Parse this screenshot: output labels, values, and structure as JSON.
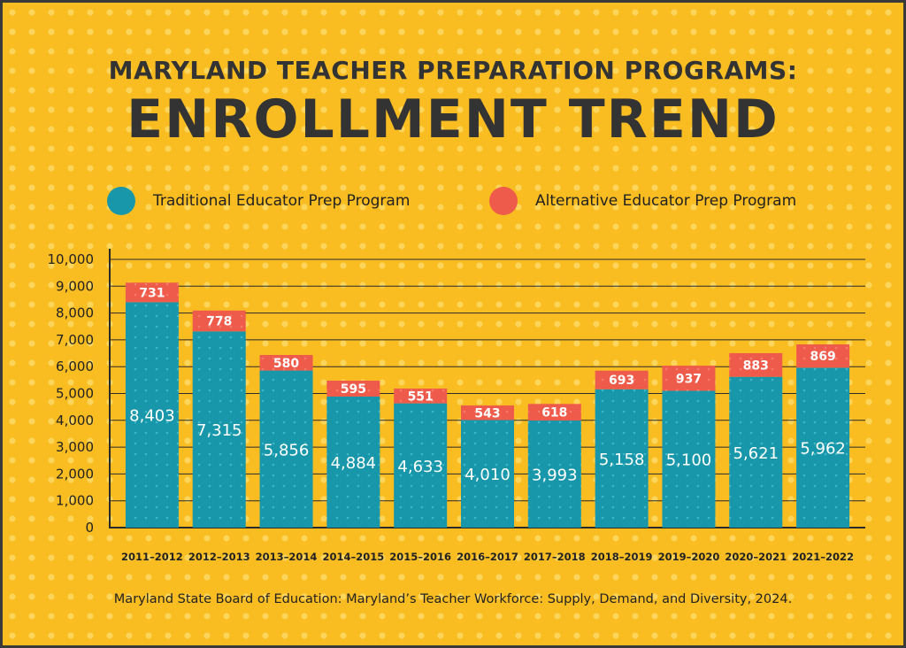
{
  "title": {
    "line1": "MARYLAND TEACHER PREPARATION PROGRAMS:",
    "line2": "ENROLLMENT TREND"
  },
  "legend": {
    "traditional": "Traditional Educator Prep Program",
    "alternative": "Alternative Educator Prep Program"
  },
  "colors": {
    "background": "#f9bd22",
    "traditional": "#1897aa",
    "alternative": "#ef5b4b",
    "text": "#333333"
  },
  "source": "Maryland State Board of Education: Maryland’s Teacher Workforce: Supply, Demand, and Diversity, 2024.",
  "chart_data": {
    "type": "bar",
    "stacked": true,
    "categories": [
      "2011–2012",
      "2012–2013",
      "2013–2014",
      "2014–2015",
      "2015–2016",
      "2016–2017",
      "2017–2018",
      "2018–2019",
      "2019–2020",
      "2020–2021",
      "2021–2022"
    ],
    "series": [
      {
        "name": "Traditional Educator Prep Program",
        "values": [
          8403,
          7315,
          5856,
          4884,
          4633,
          4010,
          3993,
          5158,
          5100,
          5621,
          5962
        ]
      },
      {
        "name": "Alternative Educator Prep Program",
        "values": [
          731,
          778,
          580,
          595,
          551,
          543,
          618,
          693,
          937,
          883,
          869
        ]
      }
    ],
    "yticks": [
      "10,000",
      "9,000",
      "8,000",
      "7,000",
      "6,000",
      "5,000",
      "4,000",
      "3,000",
      "2,000",
      "1,000",
      "0"
    ],
    "ylim": [
      0,
      10000
    ],
    "grid": true,
    "legend_position": "top"
  }
}
